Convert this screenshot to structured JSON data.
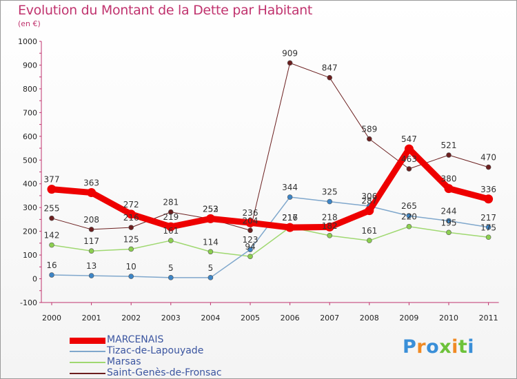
{
  "chart_data": {
    "type": "line",
    "title": "Evolution du Montant de la Dette par Habitant",
    "subtitle": "(en €)",
    "categories": [
      "2000",
      "2001",
      "2002",
      "2003",
      "2004",
      "2005",
      "2006",
      "2007",
      "2008",
      "2009",
      "2010",
      "2011"
    ],
    "ylim": [
      -100,
      1000
    ],
    "yticks": [
      -100,
      0,
      100,
      200,
      300,
      400,
      500,
      600,
      700,
      800,
      900,
      1000
    ],
    "grid": false,
    "legend_position": "bottom-left",
    "series": [
      {
        "name": "Saint-Genès-de-Fronsac",
        "color": "#6b1f1f",
        "dot": "#6b1f1f",
        "width": 1,
        "values": [
          255,
          208,
          216,
          281,
          252,
          204,
          909,
          847,
          589,
          463,
          521,
          470
        ]
      },
      {
        "name": "Marsas",
        "color": "#9fd870",
        "dot": "#8ccf50",
        "width": 1.5,
        "values": [
          142,
          117,
          125,
          161,
          114,
          94,
          217,
          182,
          161,
          220,
          195,
          175
        ]
      },
      {
        "name": "Tizac-de-Lapouyade",
        "color": "#7fa7cc",
        "dot": "#3d85c6",
        "width": 1.5,
        "values": [
          16,
          13,
          10,
          5,
          5,
          123,
          344,
          325,
          306,
          265,
          244,
          217
        ]
      },
      {
        "name": "MARCENAIS",
        "color": "#ee0000",
        "dot": "#ee0000",
        "width": 9,
        "values": [
          377,
          363,
          272,
          219,
          253,
          236,
          216,
          218,
          287,
          547,
          380,
          336
        ]
      }
    ]
  },
  "legend": {
    "items": [
      {
        "label": "MARCENAIS",
        "color": "#ee0000"
      },
      {
        "label": "Tizac-de-Lapouyade",
        "color": "#7fa7cc"
      },
      {
        "label": "Marsas",
        "color": "#9fd870"
      },
      {
        "label": "Saint-Genès-de-Fronsac",
        "color": "#6b1f1f"
      }
    ]
  },
  "logo": {
    "letters": [
      {
        "ch": "P",
        "color": "#3a8fd8"
      },
      {
        "ch": "r",
        "color": "#f08a24"
      },
      {
        "ch": "o",
        "color": "#3a8fd8"
      },
      {
        "ch": "x",
        "color": "#6dc23a"
      },
      {
        "ch": "i",
        "color": "#f08a24"
      },
      {
        "ch": "t",
        "color": "#6dc23a"
      },
      {
        "ch": "i",
        "color": "#3a8fd8"
      }
    ]
  }
}
